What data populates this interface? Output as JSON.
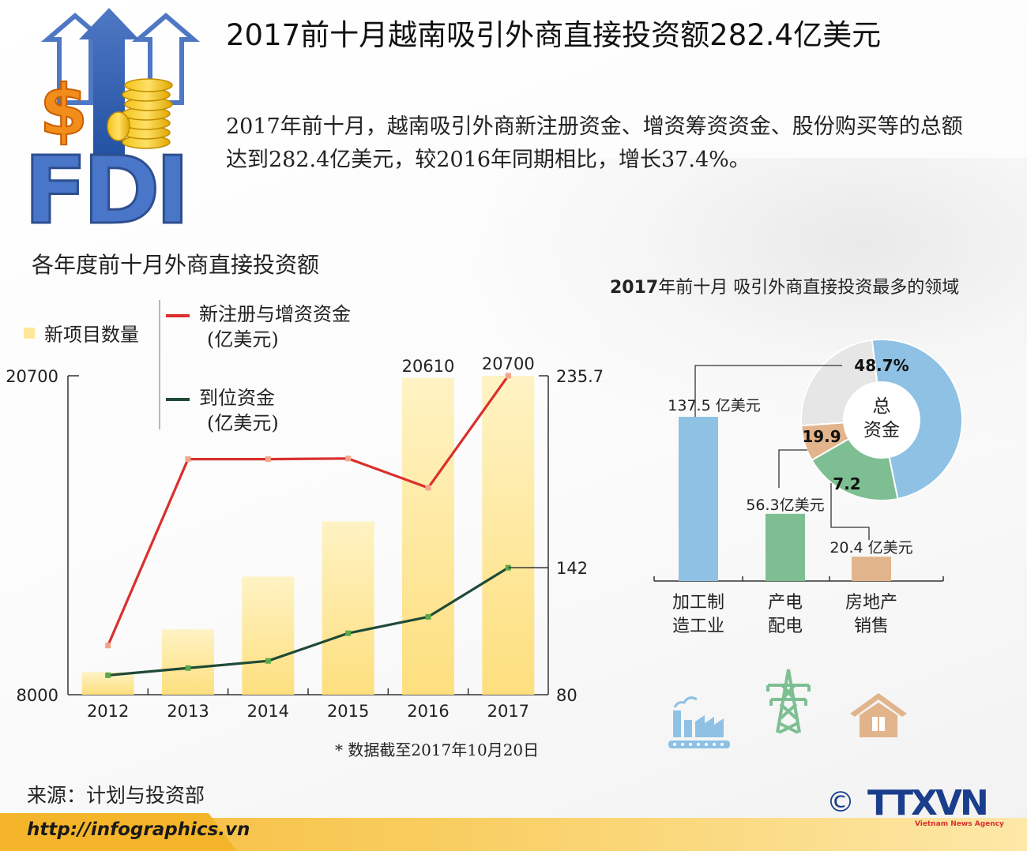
{
  "header": {
    "title": "2017前十月越南吸引外商直接投资额282.4亿美元",
    "intro": "2017年前十月，越南吸引外商新注册资金、增资筹资资金、股份购买等的总额达到282.4亿美元，较2016年同期相比，增长37.4%。",
    "logo_text": "FDI"
  },
  "colors": {
    "bar": "#fde79a",
    "red_line": "#d9302c",
    "green_line": "#1f4a36",
    "blue": "#8ec1e3",
    "green": "#7dbf92",
    "tan": "#e2b48c",
    "grey": "#e6e6e6",
    "footer": "#f5b52b"
  },
  "chart_data": [
    {
      "type": "bar",
      "title": "各年度前十月外商直接投资额",
      "categories": [
        "2012",
        "2013",
        "2014",
        "2015",
        "2016",
        "2017"
      ],
      "series": [
        {
          "name": "新项目数量",
          "type": "bar",
          "axis": "left",
          "values": [
            8900,
            10600,
            12700,
            14900,
            20610,
            20700
          ],
          "data_labels": [
            "",
            "",
            "",
            "",
            "20610",
            "20700"
          ]
        },
        {
          "name": "新注册与增资资金",
          "unit": "(亿美元)",
          "type": "line",
          "axis": "right",
          "values": [
            104,
            195,
            195,
            195.3,
            181,
            235.7
          ],
          "data_labels": [
            "",
            "",
            "",
            "",
            "",
            "235.7"
          ]
        },
        {
          "name": "到位资金",
          "unit": "(亿美元)",
          "type": "line",
          "axis": "right",
          "values": [
            89.5,
            93,
            96.5,
            110,
            118,
            142
          ],
          "data_labels": [
            "",
            "",
            "",
            "",
            "",
            "142"
          ]
        }
      ],
      "left_axis": {
        "ylim": [
          8000,
          20700
        ],
        "tick_labels": [
          "8000",
          "20700"
        ]
      },
      "right_axis": {
        "ylim": [
          80,
          235.7
        ],
        "tick_labels": [
          "80",
          "142",
          "235.7"
        ]
      },
      "footnote": "* 数据截至2017年10月20日"
    },
    {
      "type": "bar",
      "title_bold": "2017",
      "title": "年前十月 吸引外商直接投资最多的领域",
      "categories": [
        "加工制造工业",
        "产电配电",
        "房地产销售"
      ],
      "category_lines": [
        [
          "加工制",
          "造工业"
        ],
        [
          "产电",
          "配电"
        ],
        [
          "房地产",
          "销售"
        ]
      ],
      "values": [
        137.5,
        56.3,
        20.4
      ],
      "data_labels": [
        "137.5 亿美元",
        "56.3亿美元",
        "20.4 亿美元"
      ]
    },
    {
      "type": "pie",
      "center_label": [
        "总",
        "资金"
      ],
      "slices": [
        {
          "label": "48.7%",
          "value": 48.7
        },
        {
          "label": "19.9",
          "value": 19.9
        },
        {
          "label": "7.2",
          "value": 7.2
        },
        {
          "label": "",
          "value": 24.2
        }
      ]
    }
  ],
  "footer": {
    "source": "来源：计划与投资部",
    "url": "http://infographics.vn",
    "copyright": "©",
    "agency_logo": "TTXVN",
    "agency_sub": "Vietnam News Agency"
  },
  "icons": [
    "factory-icon",
    "power-tower-icon",
    "house-icon"
  ]
}
